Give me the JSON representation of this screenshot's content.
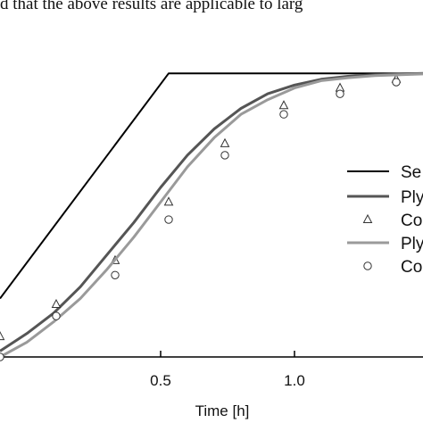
{
  "caption": {
    "text": "d that the above results are applicable to larg"
  },
  "chart_data": {
    "type": "line",
    "xlabel": "Time [h]",
    "ylabel": "",
    "title": "",
    "xlim": [
      -0.1,
      1.48
    ],
    "ylim": [
      0,
      1.05
    ],
    "xticks": [
      {
        "value": 0.5,
        "label": "0.5"
      },
      {
        "value": 1.0,
        "label": "1.0"
      }
    ],
    "grid": false,
    "legend_position": "center-right",
    "series": [
      {
        "name": "Se",
        "style": "line",
        "color": "#000000",
        "x": [
          -0.1,
          0.53,
          1.48
        ],
        "y": [
          0.2,
          0.97,
          0.97
        ]
      },
      {
        "name": "Ply",
        "style": "line",
        "color": "#555555",
        "x": [
          -0.1,
          0.0,
          0.1,
          0.2,
          0.3,
          0.4,
          0.5,
          0.6,
          0.7,
          0.8,
          0.9,
          1.0,
          1.1,
          1.2,
          1.3,
          1.48
        ],
        "y": [
          0.02,
          0.08,
          0.15,
          0.24,
          0.35,
          0.46,
          0.58,
          0.69,
          0.78,
          0.85,
          0.9,
          0.93,
          0.95,
          0.96,
          0.965,
          0.97
        ]
      },
      {
        "name": "Co",
        "style": "marker-triangle",
        "color": "#333333",
        "x": [
          -0.1,
          0.11,
          0.33,
          0.53,
          0.74,
          0.96,
          1.17,
          1.38
        ],
        "y": [
          0.07,
          0.18,
          0.33,
          0.53,
          0.73,
          0.86,
          0.92,
          0.95
        ]
      },
      {
        "name": "Ply",
        "style": "line",
        "color": "#9a9a9a",
        "x": [
          -0.1,
          0.0,
          0.1,
          0.2,
          0.3,
          0.4,
          0.5,
          0.6,
          0.7,
          0.8,
          0.9,
          1.0,
          1.1,
          1.2,
          1.3,
          1.48
        ],
        "y": [
          0.0,
          0.05,
          0.12,
          0.2,
          0.3,
          0.41,
          0.53,
          0.65,
          0.75,
          0.83,
          0.88,
          0.92,
          0.945,
          0.955,
          0.962,
          0.968
        ]
      },
      {
        "name": "Co",
        "style": "marker-circle",
        "color": "#333333",
        "x": [
          -0.1,
          0.11,
          0.33,
          0.53,
          0.74,
          0.96,
          1.17,
          1.38
        ],
        "y": [
          0.0,
          0.14,
          0.28,
          0.47,
          0.69,
          0.83,
          0.9,
          0.94
        ]
      }
    ]
  }
}
